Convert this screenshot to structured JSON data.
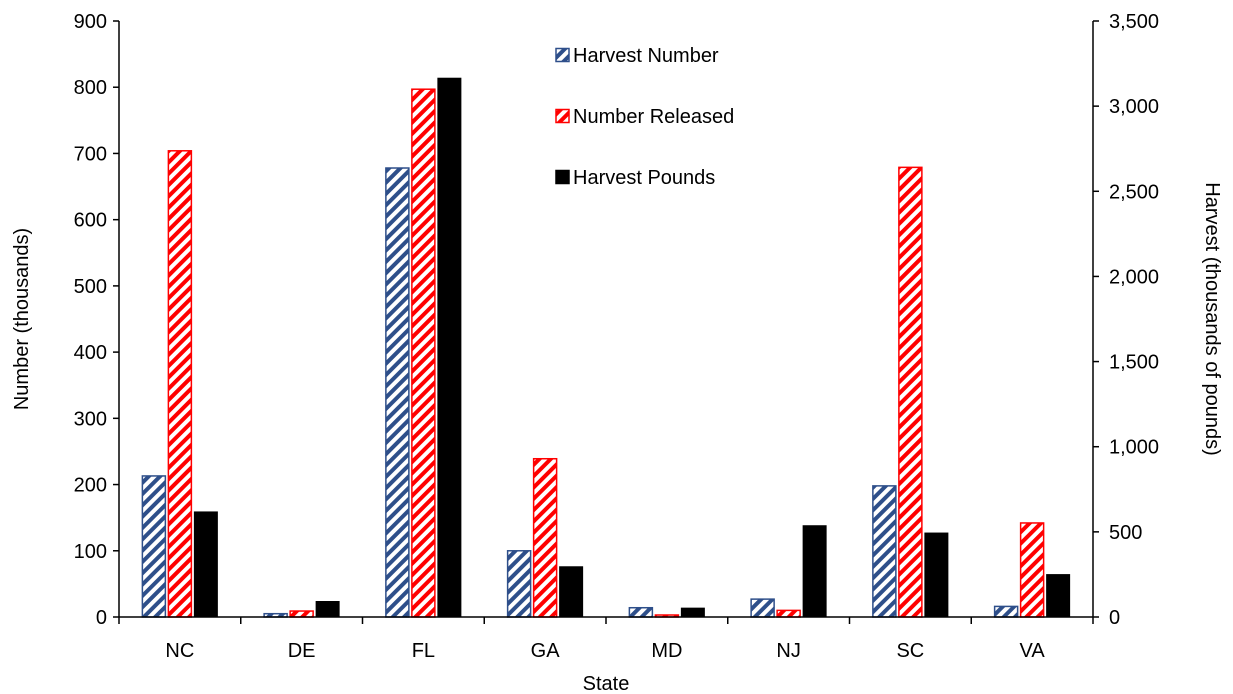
{
  "chart_data": {
    "type": "bar",
    "xlabel": "State",
    "ylabel": "Number (thousands)",
    "y2label": "Harvest (thousands of pounds)",
    "categories": [
      "NC",
      "DE",
      "FL",
      "GA",
      "MD",
      "NJ",
      "SC",
      "VA"
    ],
    "ylim": [
      0,
      900
    ],
    "yticks": [
      "0",
      "100",
      "200",
      "300",
      "400",
      "500",
      "600",
      "700",
      "800",
      "900"
    ],
    "y2lim": [
      0,
      3500
    ],
    "y2ticks": [
      "0",
      "500",
      "1,000",
      "1,500",
      "2,000",
      "2,500",
      "3,000",
      "3,500"
    ],
    "grid": false,
    "legend_position": "top-center",
    "series": [
      {
        "name": "Harvest Number",
        "axis": "left",
        "style": "hatched",
        "color": "#2e4f8a",
        "values": [
          213,
          5,
          678,
          100,
          14,
          27,
          198,
          16
        ]
      },
      {
        "name": "Number Released",
        "axis": "left",
        "style": "hatched",
        "color": "#ff0000",
        "values": [
          704,
          9,
          797,
          239,
          3,
          10,
          679,
          142
        ]
      },
      {
        "name": "Harvest Pounds",
        "axis": "right",
        "style": "solid",
        "color": "#000000",
        "values": [
          617,
          91,
          3164,
          295,
          52,
          536,
          493,
          249
        ]
      }
    ]
  }
}
